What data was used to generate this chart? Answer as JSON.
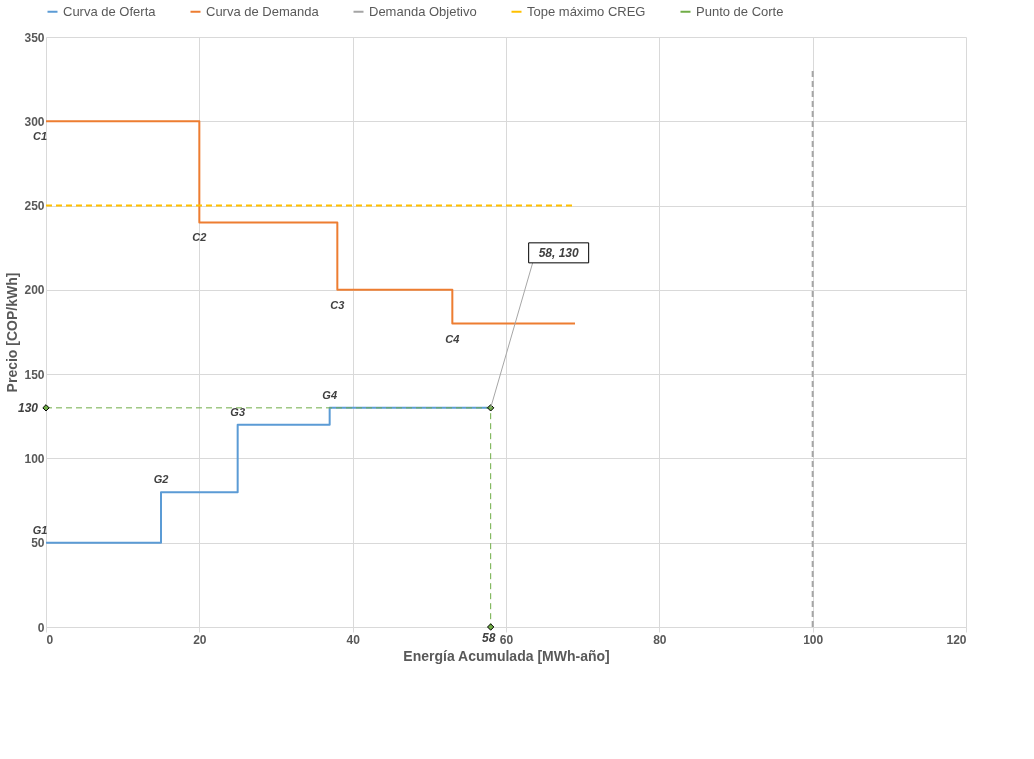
{
  "chart_data": {
    "type": "line",
    "xlabel": "Energía Acumulada [MWh-año]",
    "ylabel": "Precio [COP/kWh]",
    "xlim": [
      0,
      120
    ],
    "ylim": [
      0,
      350
    ],
    "xticks": [
      0,
      20,
      40,
      60,
      80,
      100,
      120
    ],
    "yticks": [
      0,
      50,
      100,
      150,
      200,
      250,
      300,
      350
    ],
    "grid": true,
    "legend": "top",
    "series": [
      {
        "name": "Curva de Oferta",
        "type": "step",
        "color": "#5b9bd5",
        "x": [
          0,
          15,
          25,
          37,
          58
        ],
        "values": [
          50,
          80,
          120,
          130,
          130
        ]
      },
      {
        "name": "Curva de Demanda",
        "type": "step",
        "color": "#ed7d31",
        "x": [
          0,
          20,
          38,
          53,
          69
        ],
        "values": [
          300,
          240,
          200,
          180,
          180
        ]
      },
      {
        "name": "Demanda Objetivo",
        "color": "#a5a5a5",
        "line_style": "dashed",
        "x": [
          100,
          100
        ],
        "values": [
          0,
          330
        ]
      },
      {
        "name": "Tope máximo CREG",
        "color": "#ffc000",
        "line_style": "dashed",
        "x": [
          0,
          69
        ],
        "values": [
          250,
          250
        ]
      },
      {
        "name": "Punto de Corte",
        "color": "#70ad47",
        "line_style": "dashed",
        "marker": "diamond",
        "x": [
          0,
          58,
          58
        ],
        "values": [
          130,
          130,
          0
        ]
      }
    ],
    "annotations": [
      {
        "text": "C1",
        "x": 0,
        "y": 300
      },
      {
        "text": "C2",
        "x": 20,
        "y": 240
      },
      {
        "text": "C3",
        "x": 38,
        "y": 200
      },
      {
        "text": "C4",
        "x": 53,
        "y": 180
      },
      {
        "text": "G1",
        "x": 0,
        "y": 50
      },
      {
        "text": "G2",
        "x": 15,
        "y": 80
      },
      {
        "text": "G3",
        "x": 25,
        "y": 120
      },
      {
        "text": "G4",
        "x": 37,
        "y": 130
      },
      {
        "text": "130",
        "x": 0,
        "y": 130
      },
      {
        "text": "58",
        "x": 58,
        "y": 0
      },
      {
        "text": "58, 130",
        "x": 58,
        "y": 130
      }
    ]
  }
}
